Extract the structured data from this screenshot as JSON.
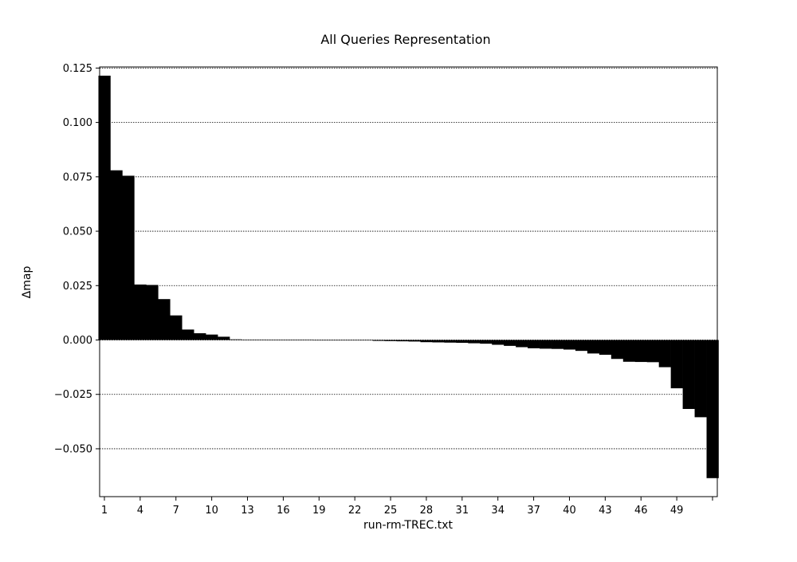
{
  "chart_data": {
    "type": "bar",
    "title": "All Queries Representation",
    "xlabel": "run-rm-TREC.txt",
    "ylabel": "Δmap",
    "bar_color": "#000000",
    "grid": "horizontal dotted",
    "xlim": [
      0.6,
      52.4
    ],
    "ylim": [
      -0.072,
      0.1255
    ],
    "x_ticks": [
      1,
      4,
      7,
      10,
      13,
      16,
      19,
      22,
      25,
      28,
      31,
      34,
      37,
      40,
      43,
      46,
      49,
      52
    ],
    "x_tick_labels": [
      "1",
      "4",
      "7",
      "10",
      "13",
      "16",
      "19",
      "22",
      "25",
      "28",
      "31",
      "34",
      "37",
      "40",
      "43",
      "46",
      "49",
      ""
    ],
    "y_ticks": [
      -0.05,
      -0.025,
      0.0,
      0.025,
      0.05,
      0.075,
      0.1,
      0.125
    ],
    "y_tick_labels": [
      "−0.050",
      "−0.025",
      "0.000",
      "0.025",
      "0.050",
      "0.075",
      "0.100",
      "0.125"
    ],
    "x": [
      1,
      2,
      3,
      4,
      5,
      6,
      7,
      8,
      9,
      10,
      11,
      12,
      13,
      14,
      15,
      16,
      17,
      18,
      19,
      20,
      21,
      22,
      23,
      24,
      25,
      26,
      27,
      28,
      29,
      30,
      31,
      32,
      33,
      34,
      35,
      36,
      37,
      38,
      39,
      40,
      41,
      42,
      43,
      44,
      45,
      46,
      47,
      48,
      49,
      50,
      51,
      52
    ],
    "values": [
      0.1215,
      0.078,
      0.0755,
      0.0255,
      0.0253,
      0.0188,
      0.0113,
      0.0048,
      0.0031,
      0.0025,
      0.0015,
      0.0003,
      0.0002,
      0.0002,
      0.0001,
      0.0001,
      0.0001,
      0.0001,
      0.0,
      0.0,
      0.0,
      -0.0001,
      -0.0002,
      -0.0004,
      -0.0005,
      -0.0006,
      -0.0007,
      -0.001,
      -0.0011,
      -0.0012,
      -0.0013,
      -0.0015,
      -0.0017,
      -0.0022,
      -0.0027,
      -0.0033,
      -0.0038,
      -0.004,
      -0.0041,
      -0.0044,
      -0.005,
      -0.0062,
      -0.0068,
      -0.0087,
      -0.01,
      -0.0101,
      -0.0102,
      -0.0125,
      -0.0222,
      -0.0317,
      -0.0355,
      -0.0635
    ]
  }
}
